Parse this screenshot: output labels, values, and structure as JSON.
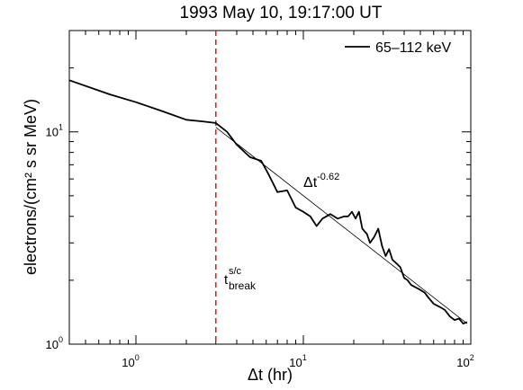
{
  "chart_data": {
    "type": "line",
    "title": "1993 May 10, 19:17:00 UT",
    "xlabel": "Δt (hr)",
    "ylabel": "electrons/(cm² s sr MeV)",
    "x_scale": "log",
    "y_scale": "log",
    "xlim": [
      0.4,
      100
    ],
    "ylim": [
      1,
      30
    ],
    "x_ticks": [
      {
        "value": 1,
        "base": "10",
        "exp": "0"
      },
      {
        "value": 10,
        "base": "10",
        "exp": "1"
      },
      {
        "value": 100,
        "base": "10",
        "exp": "2"
      }
    ],
    "y_ticks": [
      {
        "value": 1,
        "base": "10",
        "exp": "0"
      },
      {
        "value": 10,
        "base": "10",
        "exp": "1"
      }
    ],
    "legend": {
      "position": "top-right"
    },
    "series": [
      {
        "name": "65–112 keV",
        "color": "#000000",
        "x": [
          0.4,
          0.7,
          1.0,
          1.4,
          2.0,
          2.5,
          3.0,
          3.5,
          4.0,
          4.8,
          5.6,
          6.2,
          7.0,
          8.0,
          9.0,
          10.0,
          11.0,
          12.0,
          13.0,
          14.5,
          16.0,
          17.5,
          18.5,
          19.5,
          20.5,
          21.5,
          22.5,
          24.0,
          25.0,
          26.5,
          28.0,
          29.5,
          31.0,
          32.5,
          34.0,
          36.0,
          38.0,
          40.0,
          42.0,
          44.0,
          47.0,
          50.0,
          53.0,
          56.0,
          60.0,
          65.0,
          70.0,
          75.0,
          80.0,
          85.0,
          90.0,
          95.0
        ],
        "y": [
          17.5,
          15.0,
          13.8,
          12.6,
          11.4,
          11.2,
          11.0,
          10.0,
          8.7,
          7.6,
          7.3,
          6.3,
          5.2,
          5.3,
          4.4,
          4.2,
          4.0,
          3.6,
          3.9,
          4.1,
          3.9,
          4.0,
          4.0,
          4.2,
          3.9,
          4.2,
          3.5,
          3.3,
          3.0,
          3.2,
          3.5,
          2.9,
          2.6,
          2.8,
          2.5,
          2.4,
          2.3,
          2.05,
          2.0,
          1.9,
          1.85,
          1.8,
          1.75,
          1.65,
          1.55,
          1.5,
          1.45,
          1.35,
          1.3,
          1.32,
          1.25,
          1.27
        ]
      },
      {
        "name": "Δt^-0.62 fit",
        "color": "#000000",
        "x": [
          3.0,
          95.0
        ],
        "y": [
          10.5,
          1.25
        ]
      }
    ],
    "vline": {
      "x": 3.0,
      "color": "#d62728",
      "style": "dashed"
    },
    "annotations": {
      "fit_base": "Δt",
      "fit_exp": "-0.62",
      "break_base": "t",
      "break_sup": "s/c",
      "break_sub": "break"
    }
  }
}
